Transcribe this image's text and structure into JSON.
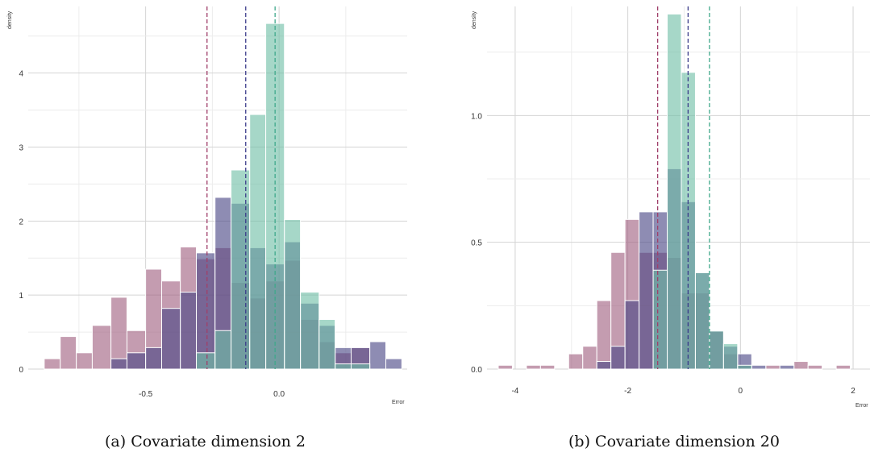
{
  "chart_data": [
    {
      "type": "bar",
      "caption": "(a) Covariate dimension 2",
      "xlabel": "Error",
      "ylabel": "density",
      "xlim": [
        -0.94,
        0.48
      ],
      "ylim": [
        0,
        4.9
      ],
      "xticks": [
        -0.5,
        0.0
      ],
      "xticklabels": [
        "-0.5",
        "0.0"
      ],
      "yticks": [
        0,
        1,
        2,
        3,
        4
      ],
      "yticklabels": [
        "0",
        "1",
        "2",
        "3",
        "4"
      ],
      "grid": true,
      "series": [
        {
          "color": "#a0607f",
          "bins": [
            {
              "x0": -0.88,
              "x1": -0.82,
              "y": 0.14
            },
            {
              "x0": -0.82,
              "x1": -0.76,
              "y": 0.44
            },
            {
              "x0": -0.76,
              "x1": -0.7,
              "y": 0.22
            },
            {
              "x0": -0.7,
              "x1": -0.63,
              "y": 0.59
            },
            {
              "x0": -0.63,
              "x1": -0.57,
              "y": 0.97
            },
            {
              "x0": -0.57,
              "x1": -0.5,
              "y": 0.52
            },
            {
              "x0": -0.5,
              "x1": -0.44,
              "y": 1.35
            },
            {
              "x0": -0.44,
              "x1": -0.37,
              "y": 1.19
            },
            {
              "x0": -0.37,
              "x1": -0.31,
              "y": 1.65
            },
            {
              "x0": -0.31,
              "x1": -0.24,
              "y": 1.49
            },
            {
              "x0": -0.24,
              "x1": -0.18,
              "y": 1.64
            },
            {
              "x0": -0.18,
              "x1": -0.11,
              "y": 1.17
            },
            {
              "x0": -0.11,
              "x1": -0.05,
              "y": 0.96
            },
            {
              "x0": -0.05,
              "x1": 0.02,
              "y": 1.19
            },
            {
              "x0": 0.02,
              "x1": 0.08,
              "y": 1.47
            },
            {
              "x0": 0.08,
              "x1": 0.15,
              "y": 0.67
            },
            {
              "x0": 0.15,
              "x1": 0.21,
              "y": 0.37
            },
            {
              "x0": 0.21,
              "x1": 0.27,
              "y": 0.22
            },
            {
              "x0": 0.27,
              "x1": 0.34,
              "y": 0.29
            }
          ]
        },
        {
          "color": "#484585",
          "bins": [
            {
              "x0": -0.63,
              "x1": -0.57,
              "y": 0.14
            },
            {
              "x0": -0.57,
              "x1": -0.5,
              "y": 0.22
            },
            {
              "x0": -0.5,
              "x1": -0.44,
              "y": 0.29
            },
            {
              "x0": -0.44,
              "x1": -0.37,
              "y": 0.82
            },
            {
              "x0": -0.37,
              "x1": -0.31,
              "y": 1.04
            },
            {
              "x0": -0.31,
              "x1": -0.24,
              "y": 1.57
            },
            {
              "x0": -0.24,
              "x1": -0.18,
              "y": 2.32
            },
            {
              "x0": -0.18,
              "x1": -0.11,
              "y": 2.24
            },
            {
              "x0": -0.11,
              "x1": -0.05,
              "y": 1.64
            },
            {
              "x0": -0.05,
              "x1": 0.02,
              "y": 1.42
            },
            {
              "x0": 0.02,
              "x1": 0.08,
              "y": 1.72
            },
            {
              "x0": 0.08,
              "x1": 0.15,
              "y": 0.89
            },
            {
              "x0": 0.15,
              "x1": 0.21,
              "y": 0.59
            },
            {
              "x0": 0.21,
              "x1": 0.27,
              "y": 0.29
            },
            {
              "x0": 0.27,
              "x1": 0.34,
              "y": 0.29
            },
            {
              "x0": 0.34,
              "x1": 0.4,
              "y": 0.37
            },
            {
              "x0": 0.4,
              "x1": 0.46,
              "y": 0.14
            }
          ]
        },
        {
          "color": "#6fbfa6",
          "bins": [
            {
              "x0": -0.31,
              "x1": -0.24,
              "y": 0.22
            },
            {
              "x0": -0.24,
              "x1": -0.18,
              "y": 0.52
            },
            {
              "x0": -0.18,
              "x1": -0.11,
              "y": 2.69
            },
            {
              "x0": -0.11,
              "x1": -0.05,
              "y": 3.44
            },
            {
              "x0": -0.05,
              "x1": 0.02,
              "y": 4.67
            },
            {
              "x0": 0.02,
              "x1": 0.08,
              "y": 2.02
            },
            {
              "x0": 0.08,
              "x1": 0.15,
              "y": 1.04
            },
            {
              "x0": 0.15,
              "x1": 0.21,
              "y": 0.67
            },
            {
              "x0": 0.21,
              "x1": 0.27,
              "y": 0.07
            },
            {
              "x0": 0.27,
              "x1": 0.34,
              "y": 0.07
            }
          ]
        }
      ],
      "vlines": [
        {
          "x": -0.27,
          "color": "#a0406a"
        },
        {
          "x": -0.125,
          "color": "#3b3b8a"
        },
        {
          "x": -0.015,
          "color": "#3fa88a"
        }
      ]
    },
    {
      "type": "bar",
      "caption": "(b) Covariate dimension 20",
      "xlabel": "Error",
      "ylabel": "density",
      "xlim": [
        -4.5,
        2.3
      ],
      "ylim": [
        0,
        1.43
      ],
      "xticks": [
        -4,
        -2,
        0,
        2
      ],
      "xticklabels": [
        "-4",
        "-2",
        "0",
        "2"
      ],
      "yticks": [
        0.0,
        0.5,
        1.0
      ],
      "yticklabels": [
        "0.0",
        "0.5",
        "1.0"
      ],
      "grid": true,
      "series": [
        {
          "color": "#a0607f",
          "bins": [
            {
              "x0": -4.3,
              "x1": -4.05,
              "y": 0.015
            },
            {
              "x0": -3.8,
              "x1": -3.55,
              "y": 0.015
            },
            {
              "x0": -3.55,
              "x1": -3.3,
              "y": 0.015
            },
            {
              "x0": -3.05,
              "x1": -2.8,
              "y": 0.06
            },
            {
              "x0": -2.8,
              "x1": -2.55,
              "y": 0.09
            },
            {
              "x0": -2.55,
              "x1": -2.3,
              "y": 0.27
            },
            {
              "x0": -2.3,
              "x1": -2.05,
              "y": 0.46
            },
            {
              "x0": -2.05,
              "x1": -1.8,
              "y": 0.59
            },
            {
              "x0": -1.8,
              "x1": -1.55,
              "y": 0.46
            },
            {
              "x0": -1.55,
              "x1": -1.3,
              "y": 0.46
            },
            {
              "x0": -1.3,
              "x1": -1.05,
              "y": 0.44
            },
            {
              "x0": -1.05,
              "x1": -0.8,
              "y": 0.3
            },
            {
              "x0": -0.8,
              "x1": -0.55,
              "y": 0.3
            },
            {
              "x0": -0.55,
              "x1": -0.3,
              "y": 0.15
            },
            {
              "x0": -0.3,
              "x1": -0.05,
              "y": 0.06
            },
            {
              "x0": -0.05,
              "x1": 0.2,
              "y": 0.015
            },
            {
              "x0": 0.45,
              "x1": 0.7,
              "y": 0.015
            },
            {
              "x0": 0.95,
              "x1": 1.2,
              "y": 0.03
            },
            {
              "x0": 1.2,
              "x1": 1.45,
              "y": 0.015
            },
            {
              "x0": 1.7,
              "x1": 1.95,
              "y": 0.015
            }
          ]
        },
        {
          "color": "#484585",
          "bins": [
            {
              "x0": -2.55,
              "x1": -2.3,
              "y": 0.03
            },
            {
              "x0": -2.3,
              "x1": -2.05,
              "y": 0.09
            },
            {
              "x0": -2.05,
              "x1": -1.8,
              "y": 0.27
            },
            {
              "x0": -1.8,
              "x1": -1.55,
              "y": 0.62
            },
            {
              "x0": -1.55,
              "x1": -1.3,
              "y": 0.62
            },
            {
              "x0": -1.3,
              "x1": -1.05,
              "y": 0.79
            },
            {
              "x0": -1.05,
              "x1": -0.8,
              "y": 0.66
            },
            {
              "x0": -0.8,
              "x1": -0.55,
              "y": 0.38
            },
            {
              "x0": -0.55,
              "x1": -0.3,
              "y": 0.15
            },
            {
              "x0": -0.3,
              "x1": -0.05,
              "y": 0.09
            },
            {
              "x0": -0.05,
              "x1": 0.2,
              "y": 0.06
            },
            {
              "x0": 0.2,
              "x1": 0.45,
              "y": 0.015
            },
            {
              "x0": 0.7,
              "x1": 0.95,
              "y": 0.015
            }
          ]
        },
        {
          "color": "#6fbfa6",
          "bins": [
            {
              "x0": -1.55,
              "x1": -1.3,
              "y": 0.39
            },
            {
              "x0": -1.3,
              "x1": -1.05,
              "y": 1.4
            },
            {
              "x0": -1.05,
              "x1": -0.8,
              "y": 1.17
            },
            {
              "x0": -0.8,
              "x1": -0.55,
              "y": 0.38
            },
            {
              "x0": -0.55,
              "x1": -0.3,
              "y": 0.15
            },
            {
              "x0": -0.3,
              "x1": -0.05,
              "y": 0.1
            },
            {
              "x0": -0.05,
              "x1": 0.2,
              "y": 0.015
            }
          ]
        }
      ],
      "vlines": [
        {
          "x": -1.47,
          "color": "#a0406a"
        },
        {
          "x": -0.93,
          "color": "#3b3b8a"
        },
        {
          "x": -0.55,
          "color": "#3fa88a"
        }
      ]
    }
  ]
}
